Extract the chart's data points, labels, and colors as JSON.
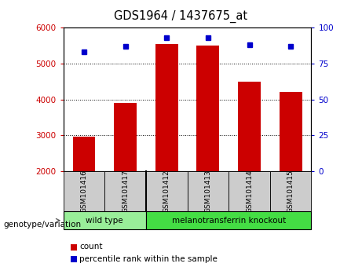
{
  "title": "GDS1964 / 1437675_at",
  "samples": [
    "GSM101416",
    "GSM101417",
    "GSM101412",
    "GSM101413",
    "GSM101414",
    "GSM101415"
  ],
  "counts": [
    2950,
    3900,
    5550,
    5500,
    4500,
    4200
  ],
  "percentile_ranks": [
    83,
    87,
    93,
    93,
    88,
    87
  ],
  "ylim_left": [
    2000,
    6000
  ],
  "ylim_right": [
    0,
    100
  ],
  "bar_color": "#cc0000",
  "dot_color": "#0000cc",
  "groups": [
    {
      "label": "wild type",
      "n": 2,
      "color": "#99ee99"
    },
    {
      "label": "melanotransferrin knockout",
      "n": 4,
      "color": "#44dd44"
    }
  ],
  "group_label": "genotype/variation",
  "legend_count_label": "count",
  "legend_percentile_label": "percentile rank within the sample",
  "yticks_left": [
    2000,
    3000,
    4000,
    5000,
    6000
  ],
  "yticks_right": [
    0,
    25,
    50,
    75,
    100
  ],
  "plot_bg": "#ffffff",
  "sample_bg": "#cccccc"
}
